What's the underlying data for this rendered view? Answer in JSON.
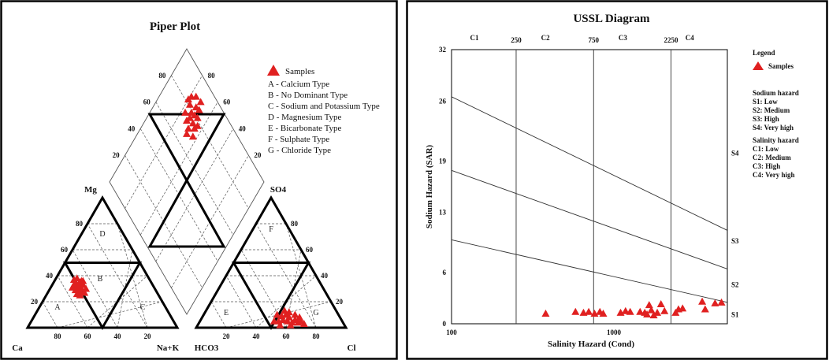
{
  "chart_data": [
    {
      "type": "scatter",
      "subtype": "piper",
      "title": "Piper Plot",
      "cation_labels": {
        "ca": "Ca",
        "mg": "Mg",
        "nak": "Na+K"
      },
      "anion_labels": {
        "hco3": "HCO3",
        "so4": "SO4",
        "cl": "Cl"
      },
      "ticks": [
        "20",
        "40",
        "60",
        "80"
      ],
      "zone_labels": [
        "A",
        "B",
        "C",
        "D",
        "E",
        "F",
        "G"
      ],
      "legend": {
        "marker_label": "Samples",
        "items": [
          "A - Calcium Type",
          "B - No Dominant Type",
          "C - Sodium and Potassium Type",
          "D - Magnesium Type",
          "E - Bicarbonate Type",
          "F - Sulphate Type",
          "G - Chloride Type"
        ]
      },
      "marker_color": "#e02020",
      "samples_cation": [
        [
          0.33,
          0.3
        ],
        [
          0.36,
          0.3
        ],
        [
          0.34,
          0.33
        ],
        [
          0.32,
          0.35
        ],
        [
          0.35,
          0.35
        ],
        [
          0.33,
          0.38
        ],
        [
          0.37,
          0.33
        ],
        [
          0.31,
          0.33
        ],
        [
          0.34,
          0.31
        ],
        [
          0.36,
          0.36
        ],
        [
          0.3,
          0.31
        ],
        [
          0.35,
          0.28
        ],
        [
          0.39,
          0.3
        ],
        [
          0.32,
          0.29
        ],
        [
          0.38,
          0.27
        ],
        [
          0.33,
          0.26
        ],
        [
          0.37,
          0.36
        ],
        [
          0.31,
          0.37
        ],
        [
          0.35,
          0.25
        ]
      ],
      "samples_anion": [
        [
          0.55,
          0.05
        ],
        [
          0.58,
          0.06
        ],
        [
          0.61,
          0.05
        ],
        [
          0.64,
          0.04
        ],
        [
          0.57,
          0.09
        ],
        [
          0.62,
          0.08
        ],
        [
          0.66,
          0.06
        ],
        [
          0.6,
          0.1
        ],
        [
          0.68,
          0.04
        ],
        [
          0.56,
          0.02
        ],
        [
          0.63,
          0.02
        ],
        [
          0.59,
          0.13
        ],
        [
          0.7,
          0.05
        ],
        [
          0.66,
          0.1
        ],
        [
          0.52,
          0.05
        ],
        [
          0.72,
          0.03
        ],
        [
          0.54,
          0.1
        ],
        [
          0.62,
          0.12
        ],
        [
          0.69,
          0.08
        ]
      ],
      "samples_diamond": [
        [
          0.52,
          0.26
        ],
        [
          0.54,
          0.28
        ],
        [
          0.51,
          0.3
        ],
        [
          0.53,
          0.24
        ],
        [
          0.55,
          0.25
        ],
        [
          0.5,
          0.27
        ],
        [
          0.56,
          0.22
        ],
        [
          0.52,
          0.21
        ],
        [
          0.55,
          0.3
        ],
        [
          0.49,
          0.24
        ],
        [
          0.57,
          0.26
        ],
        [
          0.53,
          0.18
        ],
        [
          0.56,
          0.18
        ],
        [
          0.51,
          0.19
        ],
        [
          0.58,
          0.23
        ],
        [
          0.54,
          0.33
        ],
        [
          0.5,
          0.32
        ],
        [
          0.57,
          0.29
        ],
        [
          0.59,
          0.2
        ]
      ]
    },
    {
      "type": "scatter",
      "subtype": "ussl",
      "title": "USSL Diagram",
      "xlabel": "Salinity Hazard (Cond)",
      "ylabel": "Sodium Hazard (SAR)",
      "xscale": "log",
      "xlim": [
        100,
        5000
      ],
      "ylim": [
        0,
        32
      ],
      "x_ticks": [
        "100",
        "1000"
      ],
      "y_ticks": [
        "0",
        "6",
        "13",
        "19",
        "26",
        "32"
      ],
      "boundaries": [
        "250",
        "750",
        "2250"
      ],
      "salinity_classes": [
        "C1",
        "C2",
        "C3",
        "C4"
      ],
      "sodium_classes": [
        "S1",
        "S2",
        "S3",
        "S4"
      ],
      "sar_lines": [
        {
          "name": "S1/S2",
          "start": 9.8,
          "end": 2.5
        },
        {
          "name": "S2/S3",
          "start": 17.9,
          "end": 6.4
        },
        {
          "name": "S3/S4",
          "start": 26.5,
          "end": 10.9
        }
      ],
      "legend": {
        "title": "Legend",
        "marker_label": "Samples",
        "sodium_title": "Sodium hazard",
        "sodium_items": [
          "S1: Low",
          "S2: Medium",
          "S3: High",
          "S4: Very high"
        ],
        "salinity_title": "Salinity hazard",
        "salinity_items": [
          "C1: Low",
          "C2: Medium",
          "C3: High",
          "C4: Very high"
        ]
      },
      "marker_color": "#e02020",
      "samples": [
        {
          "x": 380,
          "y": 1.2
        },
        {
          "x": 580,
          "y": 1.4
        },
        {
          "x": 650,
          "y": 1.3
        },
        {
          "x": 700,
          "y": 1.4
        },
        {
          "x": 760,
          "y": 1.2
        },
        {
          "x": 820,
          "y": 1.4
        },
        {
          "x": 860,
          "y": 1.2
        },
        {
          "x": 1100,
          "y": 1.3
        },
        {
          "x": 1180,
          "y": 1.5
        },
        {
          "x": 1260,
          "y": 1.4
        },
        {
          "x": 1450,
          "y": 1.4
        },
        {
          "x": 1550,
          "y": 1.3
        },
        {
          "x": 1600,
          "y": 1.1
        },
        {
          "x": 1650,
          "y": 2.2
        },
        {
          "x": 1700,
          "y": 1.6
        },
        {
          "x": 1760,
          "y": 1.0
        },
        {
          "x": 1850,
          "y": 1.3
        },
        {
          "x": 1950,
          "y": 2.3
        },
        {
          "x": 2050,
          "y": 1.5
        },
        {
          "x": 2400,
          "y": 1.3
        },
        {
          "x": 2500,
          "y": 1.7
        },
        {
          "x": 2650,
          "y": 1.8
        },
        {
          "x": 3500,
          "y": 2.6
        },
        {
          "x": 3650,
          "y": 1.7
        },
        {
          "x": 4200,
          "y": 2.4
        },
        {
          "x": 4600,
          "y": 2.5
        }
      ]
    }
  ]
}
